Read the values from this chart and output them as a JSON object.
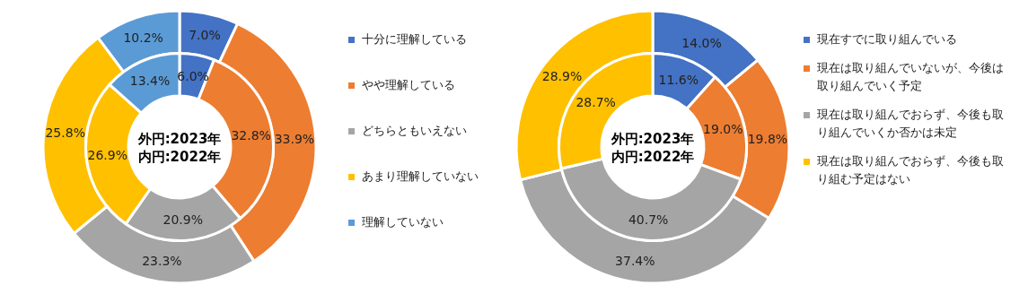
{
  "chart_data": [
    {
      "type": "donut",
      "categories": [
        "十分に理解している",
        "やや理解している",
        "どちらともいえない",
        "あまり理解していない",
        "理解していない"
      ],
      "colors": [
        "#4472c4",
        "#ed7d31",
        "#a5a5a5",
        "#ffc000",
        "#5b9bd5"
      ],
      "legend": "right",
      "annotations": [
        "外円:2023年",
        "内円:2022年"
      ],
      "series": [
        {
          "values": [
            7.0,
            33.9,
            23.3,
            25.8,
            10.2
          ],
          "value_labels": [
            "7.0%",
            "33.9%",
            "23.3%",
            "25.8%",
            "10.2%"
          ]
        },
        {
          "values": [
            6.0,
            32.8,
            20.9,
            26.9,
            13.4
          ],
          "value_labels": [
            "6.0%",
            "32.8%",
            "20.9%",
            "26.9%",
            "13.4%"
          ]
        }
      ]
    },
    {
      "type": "donut",
      "categories": [
        "現在すでに取り組んでいる",
        "現在は取り組んでいないが、今後は取り組んでいく予定",
        "現在は取り組んでおらず、今後も取り組んでいくか否かは未定",
        "現在は取り組んでおらず、今後も取り組む予定はない"
      ],
      "colors": [
        "#4472c4",
        "#ed7d31",
        "#a5a5a5",
        "#ffc000"
      ],
      "legend": "right",
      "annotations": [
        "外円:2023年",
        "内円:2022年"
      ],
      "series": [
        {
          "values": [
            14.0,
            19.8,
            37.4,
            28.9
          ],
          "value_labels": [
            "14.0%",
            "19.8%",
            "37.4%",
            "28.9%"
          ]
        },
        {
          "values": [
            11.6,
            19.0,
            40.7,
            28.7
          ],
          "value_labels": [
            "11.6%",
            "19.0%",
            "40.7%",
            "28.7%"
          ]
        }
      ]
    }
  ]
}
